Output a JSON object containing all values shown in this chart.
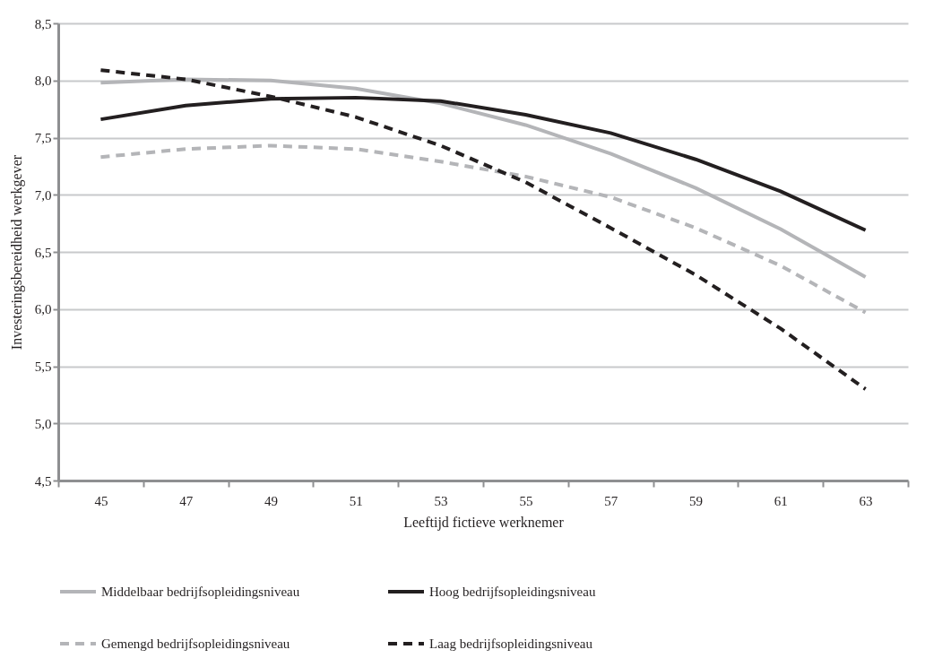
{
  "chart_data": {
    "type": "line",
    "xlabel": "Leeftijd fictieve werknemer",
    "ylabel": "Investeringsbereidheid werkgever",
    "categories": [
      "45",
      "47",
      "49",
      "51",
      "53",
      "55",
      "57",
      "59",
      "61",
      "63"
    ],
    "series": [
      {
        "name": "Middelbaar bedrijfsopleidingsniveau",
        "color": "#b4b5b8",
        "line_style": "solid",
        "values": [
          7.98,
          8.01,
          8.0,
          7.93,
          7.8,
          7.61,
          7.36,
          7.06,
          6.7,
          6.28
        ]
      },
      {
        "name": "Hoog bedrijfsopleidingsniveau",
        "color": "#231f20",
        "line_style": "solid",
        "values": [
          7.66,
          7.78,
          7.84,
          7.85,
          7.82,
          7.7,
          7.54,
          7.31,
          7.03,
          6.69
        ]
      },
      {
        "name": "Gemengd bedrijfsopleidingsniveau",
        "color": "#b4b5b8",
        "line_style": "dashed",
        "values": [
          7.33,
          7.4,
          7.43,
          7.4,
          7.29,
          7.16,
          6.98,
          6.71,
          6.38,
          5.97
        ]
      },
      {
        "name": "Laag bedrijfsopleidingsniveau",
        "color": "#231f20",
        "line_style": "dashed",
        "values": [
          8.09,
          8.01,
          7.86,
          7.68,
          7.43,
          7.11,
          6.71,
          6.3,
          5.83,
          5.3
        ]
      }
    ],
    "ylim": [
      4.5,
      8.5
    ],
    "yticks": [
      {
        "value": 4.5,
        "label": "4,5"
      },
      {
        "value": 5.0,
        "label": "5,0"
      },
      {
        "value": 5.5,
        "label": "5,5"
      },
      {
        "value": 6.0,
        "label": "6,0"
      },
      {
        "value": 6.5,
        "label": "6,5"
      },
      {
        "value": 7.0,
        "label": "7,0"
      },
      {
        "value": 7.5,
        "label": "7,5"
      },
      {
        "value": 8.0,
        "label": "8,0"
      },
      {
        "value": 8.5,
        "label": "8,5"
      }
    ],
    "grid": "y",
    "legend": "bottom",
    "marker": "none"
  }
}
